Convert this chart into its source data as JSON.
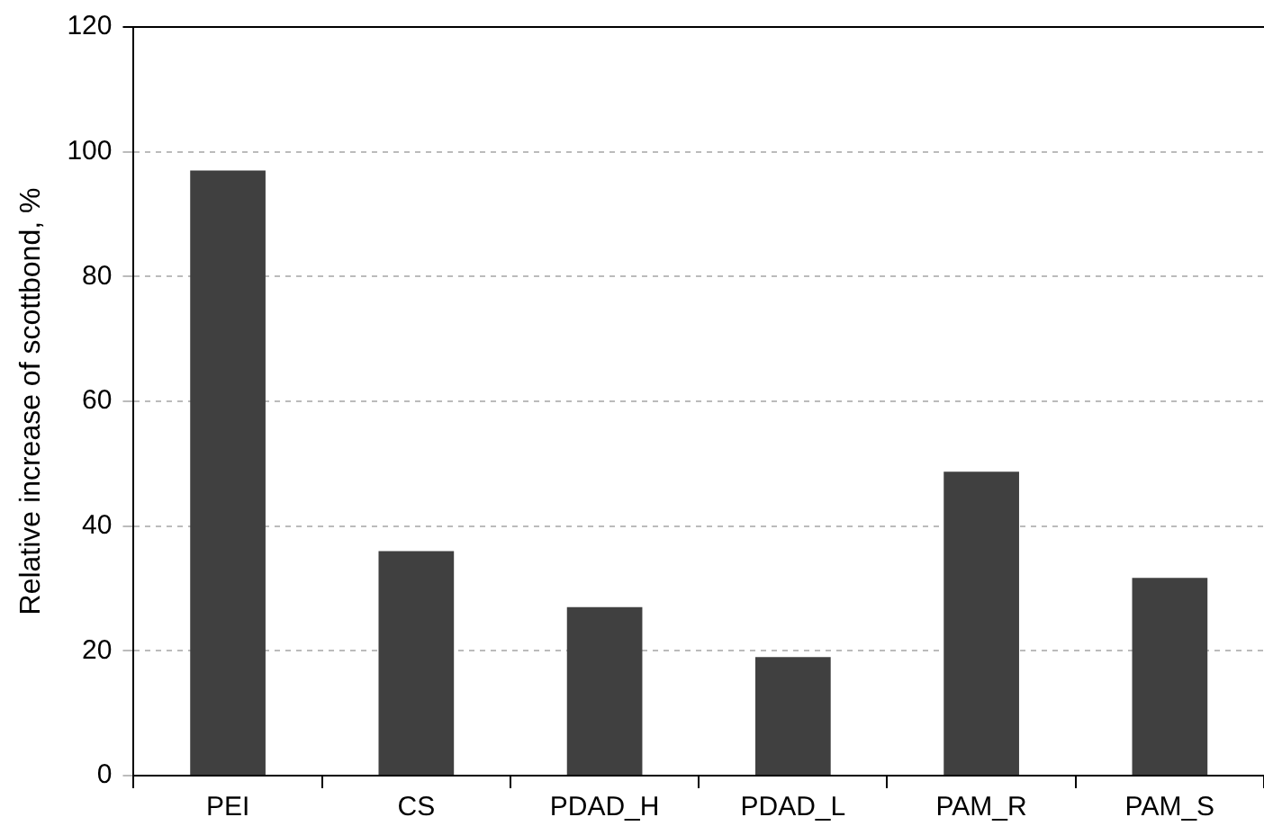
{
  "chart_data": {
    "type": "bar",
    "ylabel": "Relative increase of scottbond, %",
    "categories": [
      "PEI",
      "CS",
      "PDAD_H",
      "PDAD_L",
      "PAM_R",
      "PAM_S"
    ],
    "values": [
      97,
      36,
      27,
      19,
      48.7,
      31.7
    ],
    "color": "#404040",
    "ylim": [
      0,
      120
    ],
    "yticks": [
      0,
      20,
      40,
      60,
      80,
      100,
      120
    ],
    "grid": "y"
  }
}
